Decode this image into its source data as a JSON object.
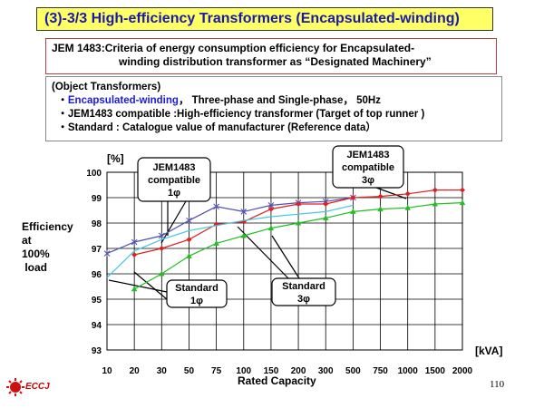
{
  "header": {
    "title": "(3)-3/3 High-efficiency Transformers (Encapsulated-winding)"
  },
  "jem_box": {
    "line1": "JEM 1483:Criteria of energy consumption efficiency for Encapsulated-",
    "line2": "winding distribution transformer as “Designated Machinery”"
  },
  "object_box": {
    "heading": "(Object Transformers)",
    "bullet1_prefix": "・",
    "bullet1_blue": "Encapsulated-winding",
    "bullet1_rest": "， Three-phase and Single-phase， 50Hz",
    "bullet2": "・JEM1483 compatible :High-efficiency transformer (Target of top runner )",
    "bullet3": "・Standard : Catalogue value of manufacturer (Reference data）"
  },
  "y_label": {
    "l1": "Efficiency",
    "l2": "at",
    "l3": "100%",
    "l4": " load"
  },
  "y_unit": "[%]",
  "x_unit": "[kVA]",
  "page_number": "110",
  "logo_text": "ECCJ",
  "colors": {
    "jem_1phase": "#5050b0",
    "jem_3phase": "#e02020",
    "std_1phase": "#40c8e0",
    "std_3phase": "#20c020"
  },
  "chart_data": {
    "type": "line",
    "xlabel": "Rated Capacity",
    "ylabel": "Efficiency at 100% load",
    "categories": [
      "10",
      "20",
      "30",
      "50",
      "75",
      "100",
      "150",
      "200",
      "300",
      "500",
      "750",
      "1000",
      "1500",
      "2000"
    ],
    "ylim": [
      93,
      100
    ],
    "yticks": [
      "100",
      "99",
      "98",
      "97",
      "96",
      "95",
      "94",
      "93"
    ],
    "grid": true,
    "series": [
      {
        "name": "JEM1483 compatible 1φ",
        "values": [
          96.8,
          97.25,
          97.5,
          98.1,
          98.65,
          98.45,
          98.7,
          98.8,
          98.85,
          99.0,
          null,
          null,
          null,
          null
        ]
      },
      {
        "name": "JEM1483 compatible 3φ",
        "values": [
          null,
          96.75,
          97.0,
          97.35,
          97.95,
          98.05,
          98.55,
          98.75,
          98.75,
          99.0,
          99.05,
          99.15,
          99.3,
          99.3
        ]
      },
      {
        "name": "Standard 1φ",
        "values": [
          95.85,
          96.9,
          97.35,
          97.7,
          97.9,
          98.1,
          98.25,
          98.35,
          98.45,
          98.7,
          null,
          null,
          null,
          null
        ]
      },
      {
        "name": "Standard 3φ",
        "values": [
          null,
          95.4,
          96.0,
          96.7,
          97.2,
          97.5,
          97.8,
          98.0,
          98.2,
          98.45,
          98.55,
          98.6,
          98.75,
          98.8
        ]
      }
    ],
    "annotations": [
      {
        "l1": "JEM1483",
        "l2": "compatible",
        "l3": "1φ"
      },
      {
        "l1": "JEM1483",
        "l2": "compatible",
        "l3": "3φ"
      },
      {
        "l1": "Standard",
        "l2": "1φ"
      },
      {
        "l1": "Standard",
        "l2": "3φ"
      }
    ]
  }
}
